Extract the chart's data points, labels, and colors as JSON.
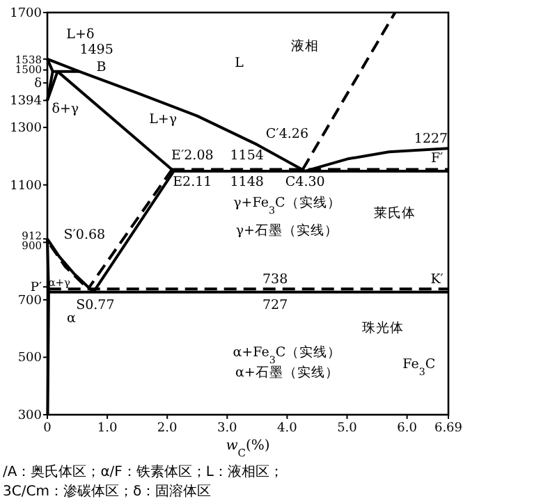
{
  "chart_data": {
    "type": "line",
    "xlabel": "*w*$_{C}$(%)",
    "xlim": [
      0,
      6.69
    ],
    "ylim": [
      300,
      1700
    ],
    "xticks": [
      0,
      {
        "value": 1,
        "label": "1.0"
      },
      {
        "value": 2,
        "label": "2.0"
      },
      {
        "value": 3,
        "label": "3.0"
      },
      {
        "value": 4,
        "label": "4.0"
      },
      {
        "value": 5,
        "label": "5.0"
      },
      {
        "value": 6,
        "label": "6.0"
      },
      6.69
    ],
    "yticks": [
      300,
      500,
      700,
      {
        "value": 745,
        "label": "P′"
      },
      900,
      912,
      1100,
      1300,
      1394,
      {
        "value": 1455,
        "label": "δ"
      },
      1500,
      1538,
      1700
    ],
    "series": [
      {
        "color": "#000000",
        "line_style": "solid",
        "x": [
          0,
          0.53,
          1.5,
          2.5,
          3.5,
          4.3
        ],
        "values": [
          1538,
          1495,
          1420,
          1340,
          1240,
          1148
        ]
      },
      {
        "color": "#000000",
        "line_style": "solid",
        "x": [
          4.3,
          5.0,
          5.7,
          6.69
        ],
        "values": [
          1148,
          1190,
          1215,
          1227
        ]
      },
      {
        "color": "#000000",
        "line_style": "dashed",
        "x": [
          4.26,
          5.8
        ],
        "values": [
          1154,
          1700
        ]
      },
      {
        "color": "#000000",
        "line_style": "solid",
        "x": [
          0,
          0.09
        ],
        "values": [
          1538,
          1495
        ]
      },
      {
        "color": "#000000",
        "line_style": "solid",
        "x": [
          0.09,
          0.53
        ],
        "values": [
          1495,
          1495
        ]
      },
      {
        "color": "#000000",
        "line_style": "solid",
        "x": [
          0.09,
          0
        ],
        "values": [
          1495,
          1394
        ]
      },
      {
        "color": "#000000",
        "line_style": "solid",
        "x": [
          0,
          0.17
        ],
        "values": [
          1394,
          1495
        ]
      },
      {
        "color": "#000000",
        "line_style": "solid",
        "x": [
          0.17,
          2.11
        ],
        "values": [
          1495,
          1148
        ]
      },
      {
        "color": "#000000",
        "line_style": "solid",
        "x": [
          2.11,
          6.69
        ],
        "values": [
          1148,
          1148
        ]
      },
      {
        "color": "#000000",
        "line_style": "dashed",
        "x": [
          2.08,
          6.69
        ],
        "values": [
          1154,
          1154
        ]
      },
      {
        "color": "#000000",
        "line_style": "solid",
        "x": [
          2.11,
          0.77
        ],
        "values": [
          1148,
          727
        ]
      },
      {
        "color": "#000000",
        "line_style": "dashed",
        "x": [
          2.08,
          0.68
        ],
        "values": [
          1154,
          738
        ]
      },
      {
        "color": "#000000",
        "line_style": "solid",
        "x": [
          0,
          0.2,
          0.45,
          0.77
        ],
        "values": [
          912,
          850,
          790,
          727
        ]
      },
      {
        "color": "#000000",
        "line_style": "dashed",
        "x": [
          0.05,
          0.3,
          0.68
        ],
        "values": [
          890,
          815,
          738
        ]
      },
      {
        "color": "#000000",
        "line_style": "solid",
        "x": [
          0,
          0.0218,
          0.0057
        ],
        "values": [
          912,
          727,
          300
        ]
      },
      {
        "color": "#000000",
        "line_style": "solid",
        "x": [
          0.0218,
          6.69
        ],
        "values": [
          727,
          727
        ]
      },
      {
        "color": "#000000",
        "line_style": "dashed",
        "x": [
          0.02,
          6.69
        ],
        "values": [
          738,
          738
        ]
      }
    ],
    "annotations": [
      "L+δ",
      "1495",
      "B",
      "L",
      "液相",
      "δ+γ",
      "L+γ",
      "E′2.08",
      "1154",
      "E2.11",
      "1148",
      "C′4.26",
      "C4.30",
      "1227",
      "F′",
      "γ+Fe$_{3}$C（实线）",
      "γ+石墨（实线）",
      "莱氏体",
      "S′0.68",
      "α+γ",
      "738",
      "K′",
      "S0.77",
      "727",
      "α",
      "珠光体",
      "α+Fe$_{3}$C（实线）",
      "α+石墨（实线）",
      "Fe$_{3}$C",
      "/A：奥氏体区；α/F：铁素体区；L：液相区；",
      "3C/Cm：渗碳体区；δ：固溶体区"
    ]
  }
}
